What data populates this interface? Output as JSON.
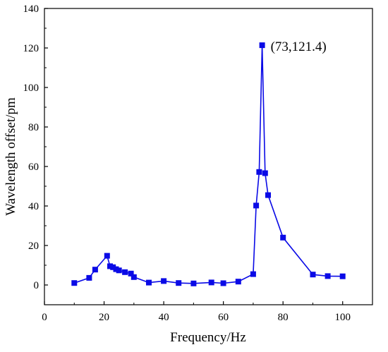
{
  "chart_data": {
    "type": "line",
    "title": "",
    "xlabel": "Frequency/Hz",
    "ylabel": "Wavelength offset/pm",
    "xlim": [
      0,
      110
    ],
    "ylim": [
      -10,
      140
    ],
    "xticks": [
      0,
      20,
      40,
      60,
      80,
      100
    ],
    "yticks": [
      0,
      20,
      40,
      60,
      80,
      100,
      120,
      140
    ],
    "grid": false,
    "marker": "square",
    "color": "#0a0ae6",
    "series": [
      {
        "x": [
          10,
          15,
          17,
          21,
          22,
          23,
          24,
          25,
          27,
          29,
          30,
          35,
          40,
          45,
          50,
          56,
          60,
          65,
          70,
          71,
          72,
          73,
          74,
          75,
          80,
          90,
          95,
          100
        ],
        "y": [
          1,
          3.6,
          7.8,
          14.8,
          9.5,
          9,
          8,
          7.4,
          6.5,
          5.8,
          4,
          1.2,
          2,
          1,
          0.8,
          1.3,
          0.9,
          1.7,
          5.5,
          40.2,
          57.2,
          121.4,
          56.6,
          45.5,
          24,
          5.3,
          4.5,
          4.4
        ]
      }
    ],
    "annotations": [
      {
        "x": 73,
        "y": 121.4,
        "text": "(73,121.4)"
      }
    ]
  }
}
